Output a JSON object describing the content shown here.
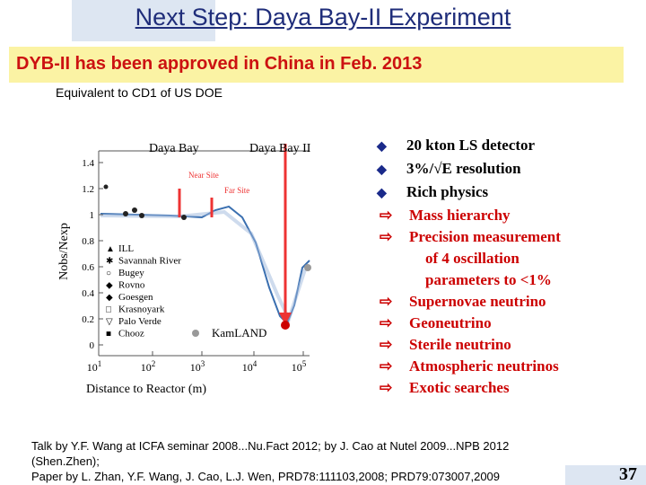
{
  "header": {
    "title": "Next Step: Daya Bay-II Experiment",
    "banner": "DYB-II has been approved in China in Feb. 2013",
    "subtitle": "Equivalent to CD1 of US DOE"
  },
  "figure": {
    "y_label": "Nobs/Nexp",
    "x_label": "Distance to Reactor (m)",
    "y_ticks": [
      "1.4",
      "1.2",
      "1",
      "0.8",
      "0.6",
      "0.4",
      "0.2",
      "0"
    ],
    "x_ticks": [
      {
        "base": "10",
        "exp": "1"
      },
      {
        "base": "10",
        "exp": "2"
      },
      {
        "base": "10",
        "exp": "3"
      },
      {
        "base": "10",
        "exp": "4"
      },
      {
        "base": "10",
        "exp": "5"
      }
    ],
    "legend": [
      "ILL",
      "Savannah River",
      "Bugey",
      "Rovno",
      "Goesgen",
      "Krasnoyark",
      "Palo Verde",
      "Chooz"
    ],
    "kamland": "KamLAND",
    "near_site": "Near Site",
    "far_site": "Far Site",
    "daya_bay": "Daya Bay",
    "daya_bay_ii": "Daya Bay II"
  },
  "bullets": [
    "20 kton LS detector",
    "3%/√E resolution",
    "Rich physics"
  ],
  "sub_bullets": [
    "Mass hierarchy",
    "Precision measurement",
    "of 4 oscillation",
    "parameters to <1%",
    "Supernovae neutrino",
    "Geoneutrino",
    "Sterile neutrino",
    "Atmospheric neutrinos",
    "Exotic searches"
  ],
  "footer": [
    "Talk by Y.F. Wang at ICFA seminar 2008...Nu.Fact 2012;  by J. Cao at Nutel 2009...NPB 2012",
    "(Shen.Zhen);",
    "Paper by L. Zhan, Y.F. Wang, J. Cao, L.J. Wen,  PRD78:111103,2008;  PRD79:073007,2009"
  ],
  "page_number": "37"
}
